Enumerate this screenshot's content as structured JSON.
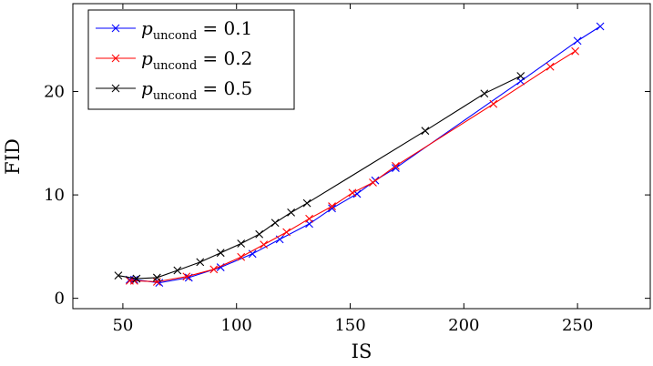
{
  "chart_data": {
    "type": "line",
    "title": "",
    "xlabel": "IS",
    "ylabel": "FID",
    "xlim": [
      28,
      282
    ],
    "ylim": [
      -1,
      28.5
    ],
    "xticks": [
      "50",
      "100",
      "150",
      "200",
      "250"
    ],
    "yticks": [
      "0",
      "10",
      "20"
    ],
    "grid": false,
    "legend_position": "top-left",
    "series": [
      {
        "name": "p",
        "subscript": "uncond",
        "value_text": "= 0.1",
        "color": "#0000ff",
        "marker": "x",
        "x": [
          53,
          55,
          66,
          79,
          93,
          107,
          119,
          132,
          142,
          153,
          161,
          170,
          225,
          250,
          260
        ],
        "y": [
          1.8,
          1.8,
          1.5,
          2.0,
          3.0,
          4.3,
          5.7,
          7.2,
          8.7,
          10.1,
          11.4,
          12.6,
          21.0,
          24.9,
          26.3
        ]
      },
      {
        "name": "p",
        "subscript": "uncond",
        "value_text": "= 0.2",
        "color": "#ff0000",
        "marker": "x",
        "x": [
          53,
          55,
          65,
          78,
          90,
          102,
          112,
          122,
          132,
          142,
          151,
          160,
          170,
          213,
          238,
          249
        ],
        "y": [
          1.7,
          1.7,
          1.6,
          2.1,
          2.8,
          4.0,
          5.2,
          6.4,
          7.7,
          8.9,
          10.2,
          11.2,
          12.8,
          18.8,
          22.4,
          23.9
        ]
      },
      {
        "name": "p",
        "subscript": "uncond",
        "value_text": "= 0.5",
        "color": "#000000",
        "marker": "x",
        "x": [
          48,
          56,
          65,
          74,
          84,
          93,
          102,
          110,
          117,
          124,
          131,
          183,
          209,
          225
        ],
        "y": [
          2.2,
          1.9,
          2.0,
          2.7,
          3.5,
          4.4,
          5.3,
          6.2,
          7.3,
          8.3,
          9.2,
          16.2,
          19.8,
          21.5
        ]
      }
    ]
  }
}
